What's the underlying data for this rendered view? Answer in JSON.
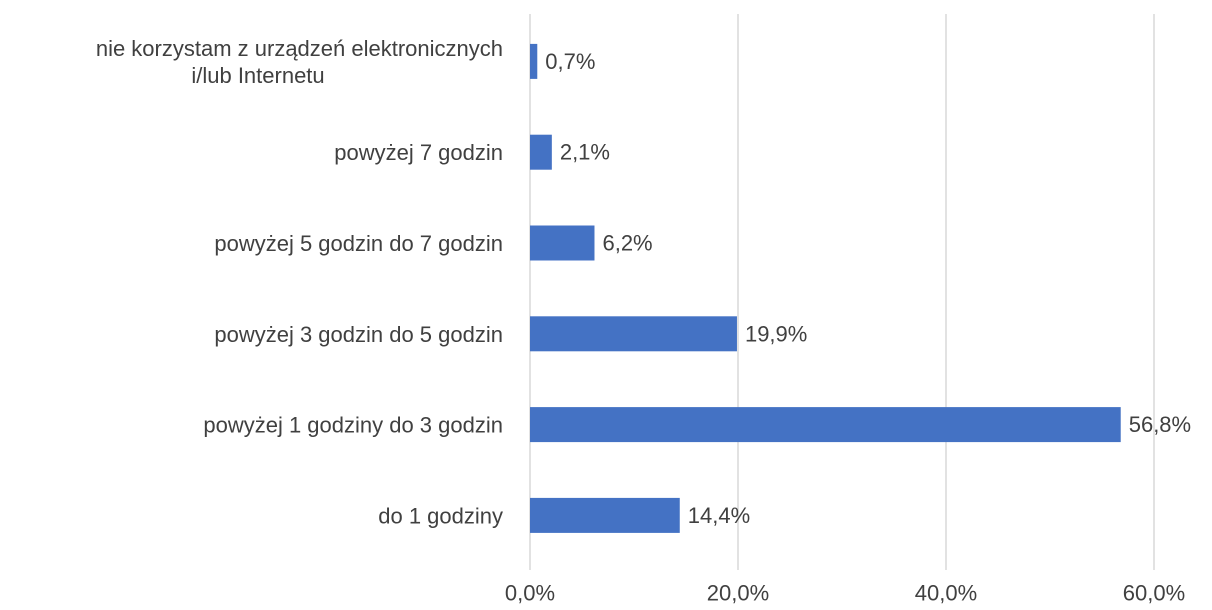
{
  "chart_data": {
    "type": "bar",
    "orientation": "horizontal",
    "categories": [
      [
        "nie korzystam z urządzeń elektronicznych",
        "i/lub Internetu"
      ],
      [
        "powyżej 7 godzin"
      ],
      [
        "powyżej 5 godzin do 7 godzin"
      ],
      [
        "powyżej 3 godzin do 5 godzin"
      ],
      [
        "powyżej 1 godziny do 3 godzin"
      ],
      [
        "do 1 godziny"
      ]
    ],
    "values": [
      0.7,
      2.1,
      6.2,
      19.9,
      56.8,
      14.4
    ],
    "value_labels": [
      "0,7%",
      "2,1%",
      "6,2%",
      "19,9%",
      "56,8%",
      "14,4%"
    ],
    "xlim": [
      0,
      60
    ],
    "xticks": [
      0,
      20,
      40,
      60
    ],
    "xtick_labels": [
      "0,0%",
      "20,0%",
      "40,0%",
      "60,0%"
    ],
    "grid": true,
    "bar_color": "#4472C4",
    "grid_color": "#d9d9d9",
    "text_color": "#404040"
  }
}
